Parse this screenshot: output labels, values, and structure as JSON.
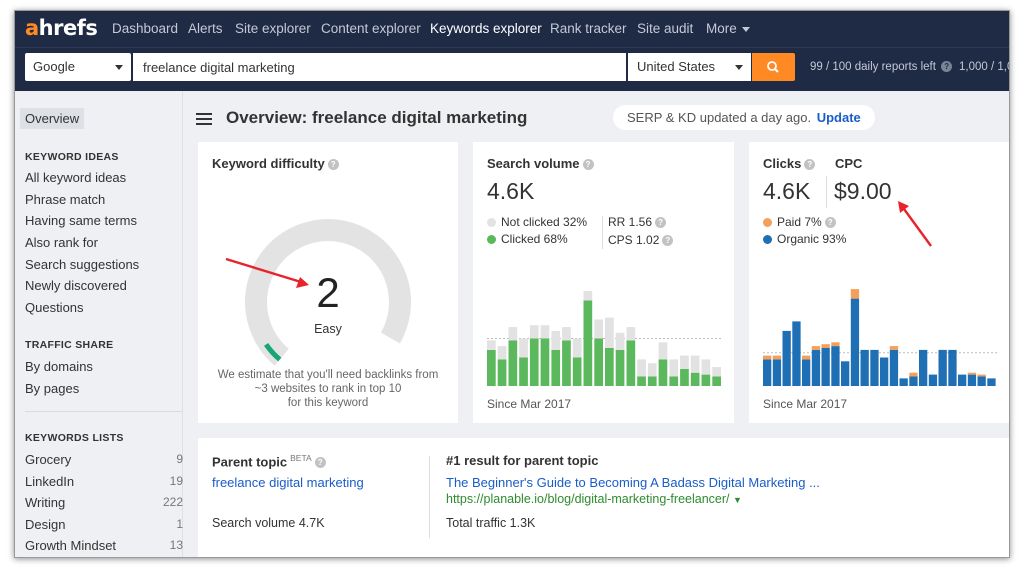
{
  "app": {
    "logo_a": "a",
    "logo_rest": "hrefs"
  },
  "nav": {
    "items": [
      {
        "label": "Dashboard"
      },
      {
        "label": "Alerts"
      },
      {
        "label": "Site explorer"
      },
      {
        "label": "Content explorer"
      },
      {
        "label": "Keywords explorer",
        "active": true
      },
      {
        "label": "Rank tracker"
      },
      {
        "label": "Site audit"
      },
      {
        "label": "More"
      }
    ]
  },
  "search": {
    "engine": "Google",
    "keyword": "freelance digital marketing",
    "country": "United States",
    "reports_left": "99 / 100 daily reports left",
    "reports_other": "1,000 / 1,0"
  },
  "sidebar": {
    "overview": "Overview",
    "keyword_ideas": {
      "heading": "KEYWORD IDEAS",
      "items": [
        "All keyword ideas",
        "Phrase match",
        "Having same terms",
        "Also rank for",
        "Search suggestions",
        "Newly discovered",
        "Questions"
      ]
    },
    "traffic_share": {
      "heading": "TRAFFIC SHARE",
      "items": [
        "By domains",
        "By pages"
      ]
    },
    "keywords_lists": {
      "heading": "KEYWORDS LISTS",
      "items": [
        {
          "label": "Grocery",
          "count": "9"
        },
        {
          "label": "LinkedIn",
          "count": "19"
        },
        {
          "label": "Writing",
          "count": "222"
        },
        {
          "label": "Design",
          "count": "1"
        },
        {
          "label": "Growth Mindset",
          "count": "13"
        }
      ]
    }
  },
  "main": {
    "title": "Overview: freelance digital marketing",
    "serp_notice": "SERP & KD updated a day ago.",
    "serp_update": "Update"
  },
  "kd": {
    "title": "Keyword difficulty",
    "value": "2",
    "label": "Easy",
    "note_line1": "We estimate that you'll need backlinks from",
    "note_line2": "~3 websites to rank in top 10",
    "note_line3": "for this keyword",
    "score": 2,
    "max": 100
  },
  "search_volume": {
    "title": "Search volume",
    "value": "4.6K",
    "not_clicked": "Not clicked 32%",
    "clicked": "Clicked 68%",
    "rr": "RR 1.56",
    "cps": "CPS 1.02",
    "since": "Since Mar 2017"
  },
  "clicks": {
    "title": "Clicks",
    "value": "4.6K",
    "cpc_title": "CPC",
    "cpc_value": "$9.00",
    "paid": "Paid 7%",
    "organic": "Organic 93%",
    "since": "Since Mar 2017"
  },
  "parent_topic": {
    "title": "Parent topic",
    "beta": "BETA",
    "topic": "freelance digital marketing",
    "volume": "Search volume 4.7K",
    "result_title": "#1 result for parent topic",
    "result_link": "The Beginner's Guide to Becoming A Badass Digital Marketing ...",
    "result_url": "https://planable.io/blog/digital-marketing-freelancer/",
    "total_traffic": "Total traffic 1.3K"
  },
  "colors": {
    "nav_bg": "#1f2a44",
    "accent": "#ff8a24",
    "clicked_green": "#5cb85c",
    "not_clicked_gray": "#e2e2e2",
    "organic_blue": "#1f6fb5",
    "paid_orange": "#f4a05a",
    "annotation_red": "#e8232a",
    "link_blue": "#1a5cc8"
  },
  "icons": {
    "search": "search-icon",
    "menu": "hamburger-icon",
    "help": "question-circle-icon"
  },
  "chart_data": [
    {
      "type": "bar",
      "name": "search-volume-history",
      "stacked": true,
      "series": [
        {
          "name": "Clicked",
          "color": "#5cb85c",
          "values": [
            38,
            28,
            48,
            30,
            50,
            50,
            38,
            48,
            30,
            90,
            50,
            40,
            38,
            48,
            10,
            10,
            28,
            10,
            18,
            14,
            12,
            10
          ]
        },
        {
          "name": "Not clicked",
          "color": "#e2e2e2",
          "values": [
            10,
            14,
            14,
            20,
            14,
            14,
            20,
            14,
            20,
            10,
            20,
            32,
            18,
            14,
            18,
            14,
            18,
            18,
            14,
            18,
            16,
            10
          ]
        }
      ],
      "ylim": [
        0,
        100
      ]
    },
    {
      "type": "bar",
      "name": "clicks-history",
      "stacked": true,
      "series": [
        {
          "name": "Organic",
          "color": "#1f6fb5",
          "values": [
            28,
            28,
            58,
            68,
            28,
            38,
            40,
            42,
            26,
            92,
            38,
            38,
            30,
            38,
            8,
            10,
            38,
            12,
            38,
            38,
            12,
            12,
            10,
            8
          ]
        },
        {
          "name": "Paid",
          "color": "#f4a05a",
          "values": [
            4,
            4,
            0,
            0,
            4,
            4,
            4,
            4,
            0,
            10,
            0,
            0,
            0,
            4,
            0,
            4,
            0,
            0,
            0,
            0,
            0,
            2,
            2,
            0
          ]
        }
      ],
      "ylim": [
        0,
        100
      ]
    }
  ]
}
